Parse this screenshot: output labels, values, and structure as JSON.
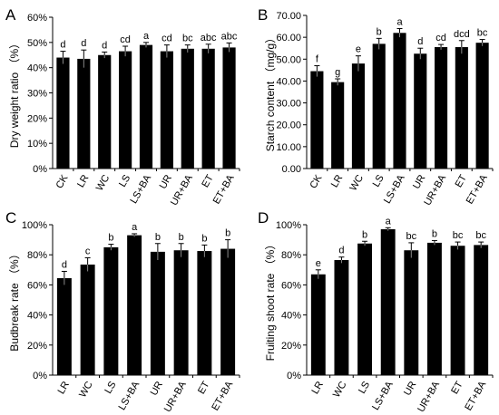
{
  "chart_data": [
    {
      "panel": "A",
      "type": "bar",
      "ylabel": "Dry weight ratio （%）",
      "ylim": [
        0,
        60
      ],
      "ytick_labels": [
        "0%",
        "10%",
        "20%",
        "30%",
        "40%",
        "50%",
        "60%"
      ],
      "categories": [
        "CK",
        "LR",
        "WC",
        "LS",
        "LS+BA",
        "UR",
        "UR+BA",
        "ET",
        "ET+BA"
      ],
      "values": [
        44,
        43.5,
        45,
        46.5,
        49,
        46.5,
        47.5,
        47.5,
        48
      ],
      "errors": [
        2.5,
        3.5,
        1.2,
        2.0,
        1.0,
        2.5,
        1.5,
        1.8,
        1.8
      ],
      "significance": [
        "d",
        "d",
        "d",
        "cd",
        "a",
        "cd",
        "bc",
        "abc",
        "abc"
      ],
      "color": "#000000"
    },
    {
      "panel": "B",
      "type": "bar",
      "ylabel": "Starch content （mg/g）",
      "ylim": [
        0,
        70
      ],
      "ytick_labels": [
        "0.00",
        "10.00",
        "20.00",
        "30.00",
        "40.00",
        "50.00",
        "60.00",
        "70.00"
      ],
      "categories": [
        "CK",
        "LR",
        "WC",
        "LS",
        "LS+BA",
        "UR",
        "UR+BA",
        "ET",
        "ET+BA"
      ],
      "values": [
        44.5,
        39.5,
        48,
        57,
        62,
        52.5,
        55.5,
        55.5,
        57.5
      ],
      "errors": [
        2.5,
        1.5,
        3.5,
        2.5,
        2.0,
        2.5,
        1.2,
        3.0,
        1.5
      ],
      "significance": [
        "f",
        "g",
        "e",
        "b",
        "a",
        "d",
        "cd",
        "dcd",
        "bc"
      ],
      "color": "#000000"
    },
    {
      "panel": "C",
      "type": "bar",
      "ylabel": "Budbreak rate （%）",
      "ylim": [
        0,
        100
      ],
      "ytick_labels": [
        "0%",
        "20%",
        "40%",
        "60%",
        "80%",
        "100%"
      ],
      "categories": [
        "LR",
        "WC",
        "LS",
        "LS+BA",
        "UR",
        "UR+BA",
        "ET",
        "ET+BA"
      ],
      "values": [
        64.5,
        73.5,
        85,
        93,
        82,
        83,
        82.5,
        84
      ],
      "errors": [
        4.5,
        4.5,
        2.0,
        1.0,
        5.5,
        4.5,
        4.0,
        6.0
      ],
      "significance": [
        "d",
        "c",
        "b",
        "a",
        "b",
        "b",
        "b",
        "b"
      ],
      "color": "#000000"
    },
    {
      "panel": "D",
      "type": "bar",
      "ylabel": "Fruiting shoot rate （%）",
      "ylim": [
        0,
        100
      ],
      "ytick_labels": [
        "0%",
        "20%",
        "40%",
        "60%",
        "80%",
        "100%"
      ],
      "categories": [
        "LR",
        "WC",
        "LS",
        "LS+BA",
        "UR",
        "UR+BA",
        "ET",
        "ET+BA"
      ],
      "values": [
        67,
        76.5,
        87.5,
        97,
        83,
        88,
        86,
        86.5
      ],
      "errors": [
        3.0,
        2.0,
        1.5,
        1.0,
        5.0,
        1.5,
        2.5,
        2.0
      ],
      "significance": [
        "e",
        "d",
        "b",
        "a",
        "bc",
        "b",
        "bc",
        "bc"
      ],
      "color": "#000000"
    }
  ]
}
